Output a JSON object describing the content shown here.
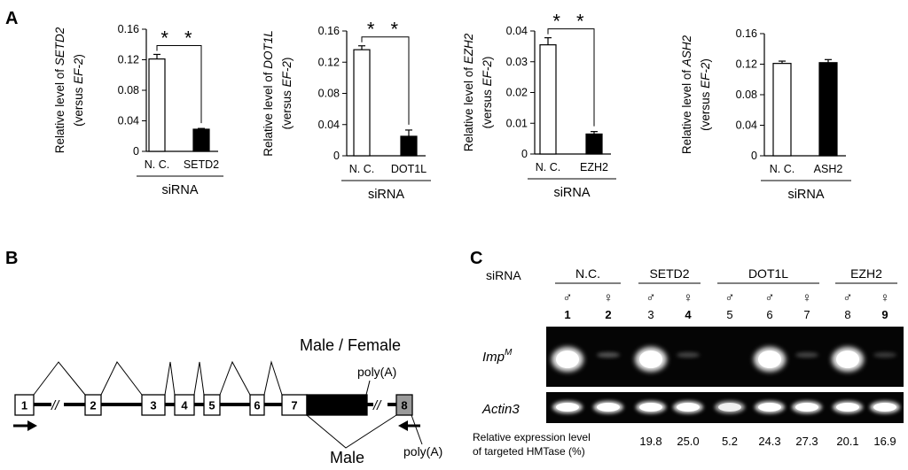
{
  "panels": {
    "A": "A",
    "B": "B",
    "C": "C"
  },
  "chart_data": [
    {
      "type": "bar",
      "ylabel_prefix": "Relative level of ",
      "ylabel_gene": "SETD2",
      "ylabel_line2_prefix": "(versus ",
      "ylabel_line2_gene": "EF-2",
      "ylabel_line2_suffix": ")",
      "categories": [
        "N. C.",
        "SETD2"
      ],
      "values": [
        0.121,
        0.029
      ],
      "errors": [
        0.006,
        0.001
      ],
      "fills": [
        "#ffffff",
        "#000000"
      ],
      "yticks": [
        "0",
        "0.04",
        "0.08",
        "0.12",
        "0.16"
      ],
      "ylim": [
        0,
        0.16
      ],
      "group_label": "siRNA",
      "significance": "* *"
    },
    {
      "type": "bar",
      "ylabel_prefix": "Relative level of ",
      "ylabel_gene": "DOT1L",
      "ylabel_line2_prefix": "(versus ",
      "ylabel_line2_gene": "EF-2",
      "ylabel_line2_suffix": ")",
      "categories": [
        "N. C.",
        "DOT1L"
      ],
      "values": [
        0.136,
        0.025
      ],
      "errors": [
        0.005,
        0.008
      ],
      "fills": [
        "#ffffff",
        "#000000"
      ],
      "yticks": [
        "0",
        "0.04",
        "0.08",
        "0.12",
        "0.16"
      ],
      "ylim": [
        0,
        0.16
      ],
      "group_label": "siRNA",
      "significance": "* *"
    },
    {
      "type": "bar",
      "ylabel_prefix": "Relative level of ",
      "ylabel_gene": "EZH2",
      "ylabel_line2_prefix": "(versus ",
      "ylabel_line2_gene": "EF-2",
      "ylabel_line2_suffix": ")",
      "categories": [
        "N. C.",
        "EZH2"
      ],
      "values": [
        0.0355,
        0.0065
      ],
      "errors": [
        0.0023,
        0.0008
      ],
      "fills": [
        "#ffffff",
        "#000000"
      ],
      "yticks": [
        "0",
        "0.01",
        "0.02",
        "0.03",
        "0.04"
      ],
      "ylim": [
        0,
        0.04
      ],
      "group_label": "siRNA",
      "significance": "* *"
    },
    {
      "type": "bar",
      "ylabel_prefix": "Relative level of ",
      "ylabel_gene": "ASH2",
      "ylabel_line2_prefix": "(versus ",
      "ylabel_line2_gene": "EF-2",
      "ylabel_line2_suffix": ")",
      "categories": [
        "N. C.",
        "ASH2"
      ],
      "values": [
        0.121,
        0.122
      ],
      "errors": [
        0.003,
        0.004
      ],
      "fills": [
        "#ffffff",
        "#000000"
      ],
      "yticks": [
        "0",
        "0.04",
        "0.08",
        "0.12",
        "0.16"
      ],
      "ylim": [
        0,
        0.16
      ],
      "group_label": "siRNA",
      "significance": ""
    }
  ],
  "gene_diagram": {
    "exons": [
      "1",
      "2",
      "3",
      "4",
      "5",
      "6",
      "7",
      "8"
    ],
    "break_mark": "//",
    "title": "Male / Female",
    "polyA_top": "poly(A)",
    "polyA_bottom": "poly(A)",
    "male_label": "Male"
  },
  "gel": {
    "sirna_label": "siRNA",
    "groups": [
      "N.C.",
      "SETD2",
      "DOT1L",
      "EZH2"
    ],
    "sexes": [
      "♂",
      "♀",
      "♂",
      "♀",
      "♂",
      "♂",
      "♀",
      "♂",
      "♀"
    ],
    "lanes": [
      "1",
      "2",
      "3",
      "4",
      "5",
      "6",
      "7",
      "8",
      "9"
    ],
    "bold_lanes": [
      "1",
      "2",
      "4",
      "9"
    ],
    "row1_label_main": "Imp",
    "row1_label_sup": "M",
    "row2_label": "Actin3",
    "imp_intensity": [
      1.0,
      0.15,
      0.95,
      0.12,
      0.0,
      0.9,
      0.12,
      0.95,
      0.1
    ],
    "actin_intensity": [
      1.0,
      1.0,
      1.0,
      1.0,
      0.8,
      1.0,
      1.0,
      1.0,
      1.0
    ],
    "expr_label_line1": "Relative expression level",
    "expr_label_line2": "of targeted HMTase (%)",
    "expr_values": [
      "",
      "",
      "19.8",
      "25.0",
      "5.2",
      "24.3",
      "27.3",
      "20.1",
      "16.9"
    ]
  }
}
